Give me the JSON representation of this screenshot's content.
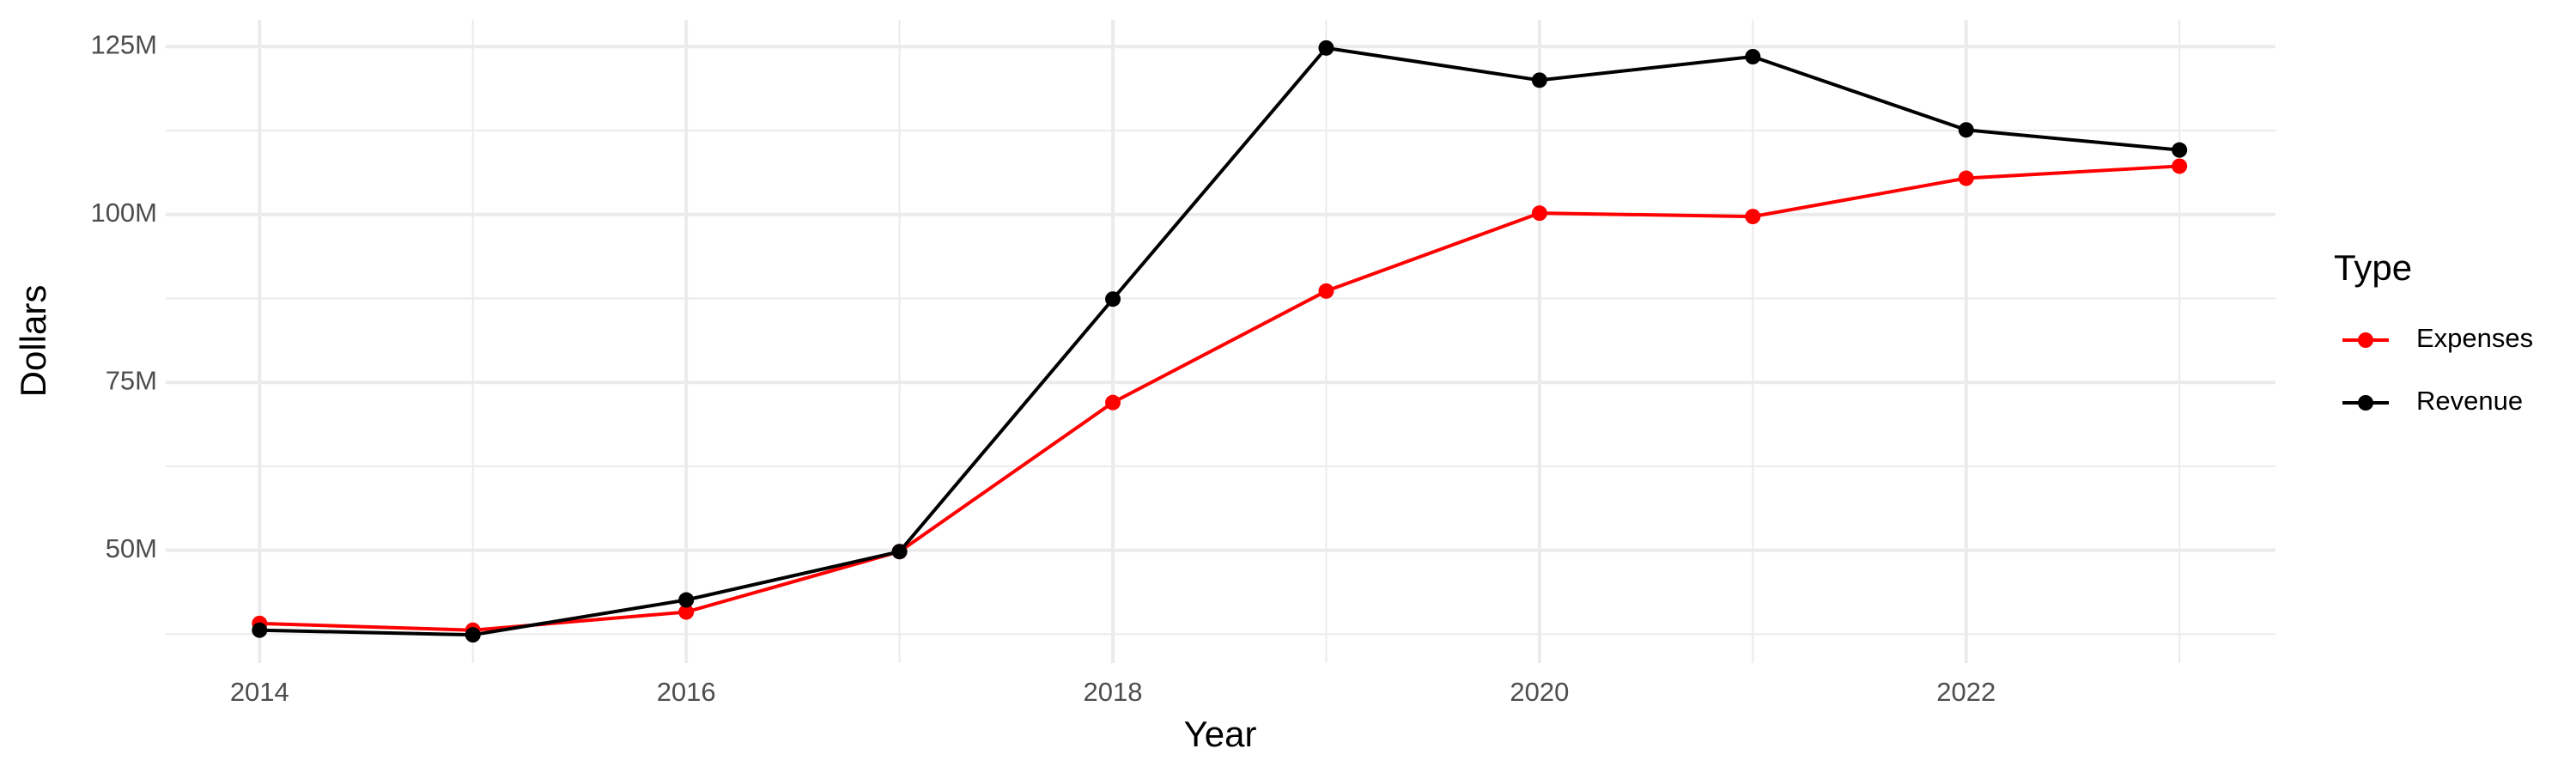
{
  "chart_data": {
    "type": "line",
    "x_label": "Year",
    "y_label": "Dollars",
    "legend_title": "Type",
    "legend_position": "right",
    "x": [
      2014,
      2015,
      2016,
      2017,
      2018,
      2019,
      2020,
      2021,
      2022,
      2023
    ],
    "series": [
      {
        "name": "Expenses",
        "color": "#ff0000",
        "values": [
          39100000,
          38100000,
          40800000,
          49800000,
          72000000,
          88600000,
          100200000,
          99700000,
          105400000,
          107200000
        ]
      },
      {
        "name": "Revenue",
        "color": "#000000",
        "values": [
          38100000,
          37400000,
          42600000,
          49800000,
          87400000,
          124800000,
          120000000,
          123500000,
          112600000,
          109600000
        ]
      }
    ],
    "xlim": [
      2013.56,
      2023.45
    ],
    "xticks": [
      2014,
      2016,
      2018,
      2020,
      2022
    ],
    "ylim": [
      33200000,
      129000000
    ],
    "yticks": [
      {
        "value": 50000000,
        "label": "50M"
      },
      {
        "value": 75000000,
        "label": "75M"
      },
      {
        "value": 100000000,
        "label": "100M"
      },
      {
        "value": 125000000,
        "label": "125M"
      }
    ],
    "grid": true
  }
}
